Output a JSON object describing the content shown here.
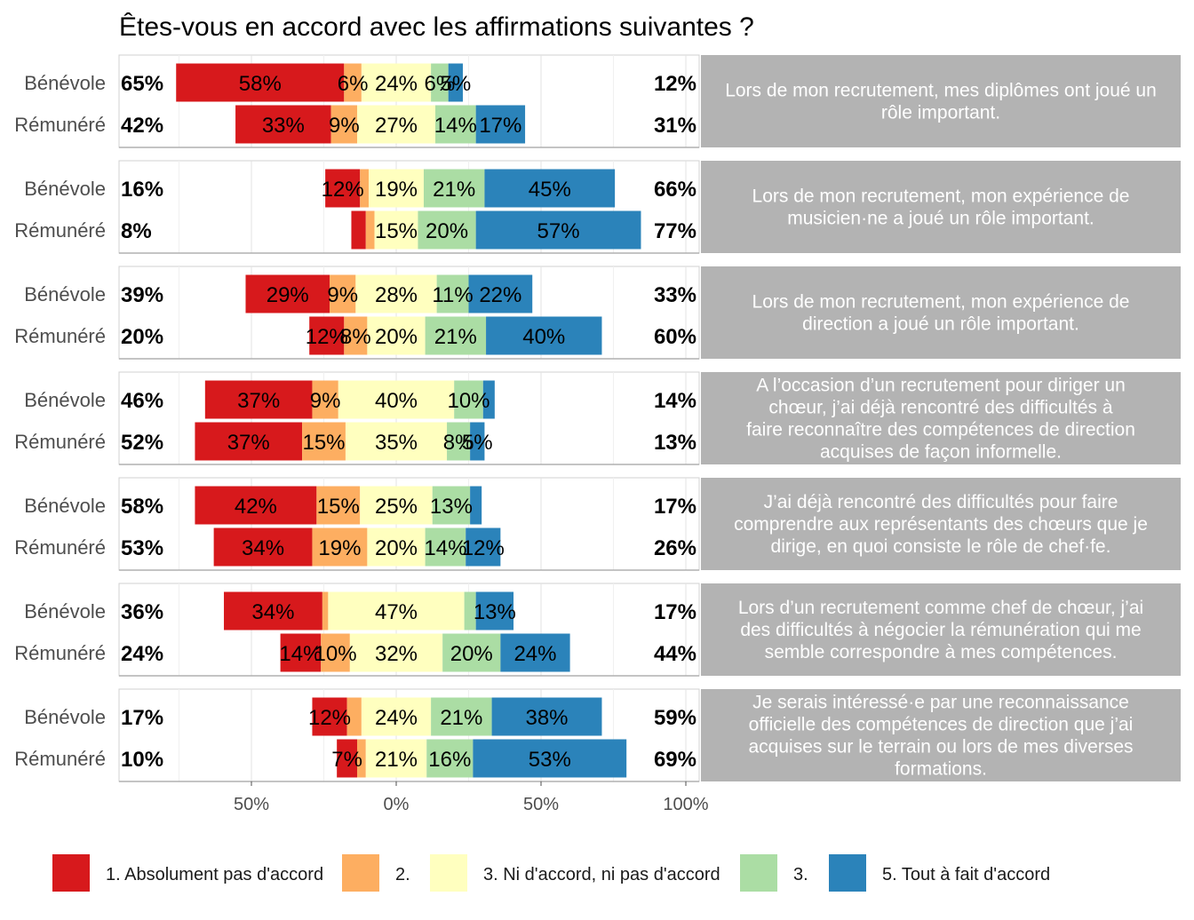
{
  "chart_data": {
    "type": "bar",
    "orientation": "horizontal-diverging-stacked",
    "title": "Êtes-vous en accord avec les affirmations suivantes ?",
    "xlim": [
      -95,
      100
    ],
    "x_ticks": [
      {
        "value": -50,
        "label": "50%"
      },
      {
        "value": 0,
        "label": "0%"
      },
      {
        "value": 50,
        "label": "50%"
      },
      {
        "value": 100,
        "label": "100%"
      }
    ],
    "grid": true,
    "legend_position": "bottom",
    "levels": [
      {
        "label": "1. Absolument pas d'accord",
        "color": "#d7191c"
      },
      {
        "label": "2.",
        "color": "#fdae61"
      },
      {
        "label": "3. Ni d'accord, ni pas d'accord",
        "color": "#ffffbf"
      },
      {
        "label": "3.",
        "color": "#abdda4"
      },
      {
        "label": "5. Tout à fait d'accord",
        "color": "#2b83ba"
      }
    ],
    "panels": [
      {
        "statement": [
          "Lors de mon recrutement, mes diplômes ont joué un",
          "rôle important."
        ],
        "rows": [
          {
            "group": "Bénévole",
            "values": [
              58,
              6,
              24,
              6,
              5
            ],
            "labels": [
              "58%",
              "6%",
              "24%",
              "6%",
              "5%"
            ],
            "low": "65%",
            "high": "12%"
          },
          {
            "group": "Rémunéré",
            "values": [
              33,
              9,
              27,
              14,
              17
            ],
            "labels": [
              "33%",
              "9%",
              "27%",
              "14%",
              "17%"
            ],
            "low": "42%",
            "high": "31%"
          }
        ]
      },
      {
        "statement": [
          "Lors de mon recrutement, mon expérience de",
          "musicien·ne a joué un rôle important."
        ],
        "rows": [
          {
            "group": "Bénévole",
            "values": [
              12,
              3,
              19,
              21,
              45
            ],
            "labels": [
              "12%",
              "",
              "19%",
              "21%",
              "45%"
            ],
            "low": "16%",
            "high": "66%"
          },
          {
            "group": "Rémunéré",
            "values": [
              5,
              3,
              15,
              20,
              57
            ],
            "labels": [
              "",
              "",
              "15%",
              "20%",
              "57%"
            ],
            "low": "8%",
            "high": "77%"
          }
        ]
      },
      {
        "statement": [
          "Lors de mon recrutement, mon expérience de",
          "direction a joué un rôle important."
        ],
        "rows": [
          {
            "group": "Bénévole",
            "values": [
              29,
              9,
              28,
              11,
              22
            ],
            "labels": [
              "29%",
              "9%",
              "28%",
              "11%",
              "22%"
            ],
            "low": "39%",
            "high": "33%"
          },
          {
            "group": "Rémunéré",
            "values": [
              12,
              8,
              20,
              21,
              40
            ],
            "labels": [
              "12%",
              "8%",
              "20%",
              "21%",
              "40%"
            ],
            "low": "20%",
            "high": "60%"
          }
        ]
      },
      {
        "statement": [
          "A l’occasion d’un recrutement pour diriger un",
          "chœur, j’ai déjà rencontré des difficultés à",
          "faire reconnaître des compétences de direction",
          "acquises de façon informelle."
        ],
        "rows": [
          {
            "group": "Bénévole",
            "values": [
              37,
              9,
              40,
              10,
              4
            ],
            "labels": [
              "37%",
              "9%",
              "40%",
              "10%",
              ""
            ],
            "low": "46%",
            "high": "14%"
          },
          {
            "group": "Rémunéré",
            "values": [
              37,
              15,
              35,
              8,
              5
            ],
            "labels": [
              "37%",
              "15%",
              "35%",
              "8%",
              "5%"
            ],
            "low": "52%",
            "high": "13%"
          }
        ]
      },
      {
        "statement": [
          "J’ai déjà rencontré des difficultés pour faire",
          "comprendre aux représentants des chœurs que je",
          "dirige, en quoi consiste le rôle de chef·fe."
        ],
        "rows": [
          {
            "group": "Bénévole",
            "values": [
              42,
              15,
              25,
              13,
              4
            ],
            "labels": [
              "42%",
              "15%",
              "25%",
              "13%",
              ""
            ],
            "low": "58%",
            "high": "17%"
          },
          {
            "group": "Rémunéré",
            "values": [
              34,
              19,
              20,
              14,
              12
            ],
            "labels": [
              "34%",
              "19%",
              "20%",
              "14%",
              "12%"
            ],
            "low": "53%",
            "high": "26%"
          }
        ]
      },
      {
        "statement": [
          "Lors d’un recrutement comme chef de chœur, j’ai",
          "des difficultés à négocier la rémunération qui me",
          "semble correspondre à mes compétences."
        ],
        "rows": [
          {
            "group": "Bénévole",
            "values": [
              34,
              2,
              47,
              4,
              13
            ],
            "labels": [
              "34%",
              "",
              "47%",
              "",
              "13%"
            ],
            "low": "36%",
            "high": "17%"
          },
          {
            "group": "Rémunéré",
            "values": [
              14,
              10,
              32,
              20,
              24
            ],
            "labels": [
              "14%",
              "10%",
              "32%",
              "20%",
              "24%"
            ],
            "low": "24%",
            "high": "44%"
          }
        ]
      },
      {
        "statement": [
          "Je serais intéressé·e par une reconnaissance",
          "officielle des compétences de direction que j’ai",
          "acquises sur le terrain ou lors de mes diverses",
          "formations."
        ],
        "rows": [
          {
            "group": "Bénévole",
            "values": [
              12,
              5,
              24,
              21,
              38
            ],
            "labels": [
              "12%",
              "",
              "24%",
              "21%",
              "38%"
            ],
            "low": "17%",
            "high": "59%"
          },
          {
            "group": "Rémunéré",
            "values": [
              7,
              3,
              21,
              16,
              53
            ],
            "labels": [
              "7%",
              "",
              "21%",
              "16%",
              "53%"
            ],
            "low": "10%",
            "high": "69%"
          }
        ]
      }
    ]
  }
}
